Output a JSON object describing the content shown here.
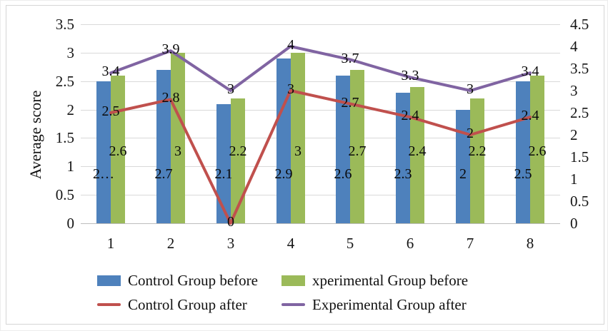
{
  "chart_data": {
    "type": "combo-bar-line",
    "ylabel": "Average score",
    "categories": [
      "1",
      "2",
      "3",
      "4",
      "5",
      "6",
      "7",
      "8"
    ],
    "series": [
      {
        "name": "Control Group before",
        "kind": "bar",
        "axis": "left",
        "color": "#4e81bc",
        "values": [
          2.5,
          2.7,
          2.1,
          2.9,
          2.6,
          2.3,
          2,
          2.5
        ],
        "labels": [
          "2…",
          "2.7",
          "2.1",
          "2.9",
          "2.6",
          "2.3",
          "2",
          "2.5"
        ]
      },
      {
        "name": "xperimental Group before",
        "kind": "bar",
        "axis": "left",
        "color": "#9bba59",
        "values": [
          2.6,
          3,
          2.2,
          3,
          2.7,
          2.4,
          2.2,
          2.6
        ],
        "labels": [
          "2.6",
          "3",
          "2.2",
          "3",
          "2.7",
          "2.4",
          "2.2",
          "2.6"
        ]
      },
      {
        "name": "Control Group after",
        "kind": "line",
        "axis": "right",
        "color": "#c0504d",
        "values": [
          2.5,
          2.8,
          0,
          3,
          2.7,
          2.4,
          2,
          2.4
        ],
        "labels": [
          "2.5",
          "2.8",
          "0",
          "3",
          "2.7",
          "2.4",
          "2",
          "2.4"
        ]
      },
      {
        "name": "Experimental Group after",
        "kind": "line",
        "axis": "right",
        "color": "#8064a2",
        "values": [
          3.4,
          3.9,
          3,
          4,
          3.7,
          3.3,
          3,
          3.4
        ],
        "labels": [
          "3.4",
          "3.9",
          "3",
          "4",
          "3.7",
          "3.3",
          "3",
          "3.4"
        ]
      }
    ],
    "left_axis": {
      "min": 0,
      "max": 3.5,
      "step": 0.5,
      "ticks": [
        "3.5",
        "3",
        "2.5",
        "2",
        "1.5",
        "1",
        "0.5",
        "0"
      ]
    },
    "right_axis": {
      "min": 0,
      "max": 4.5,
      "step": 0.5,
      "ticks": [
        "4.5",
        "4",
        "3.5",
        "3",
        "2.5",
        "2",
        "1.5",
        "1",
        "0.5",
        "0"
      ]
    },
    "legend_position": "bottom",
    "grid": "horizontal",
    "colors": {
      "gridline": "#d9d9d9",
      "axis_line": "#bdbdbd",
      "label_text": "#0a0a0a"
    }
  }
}
